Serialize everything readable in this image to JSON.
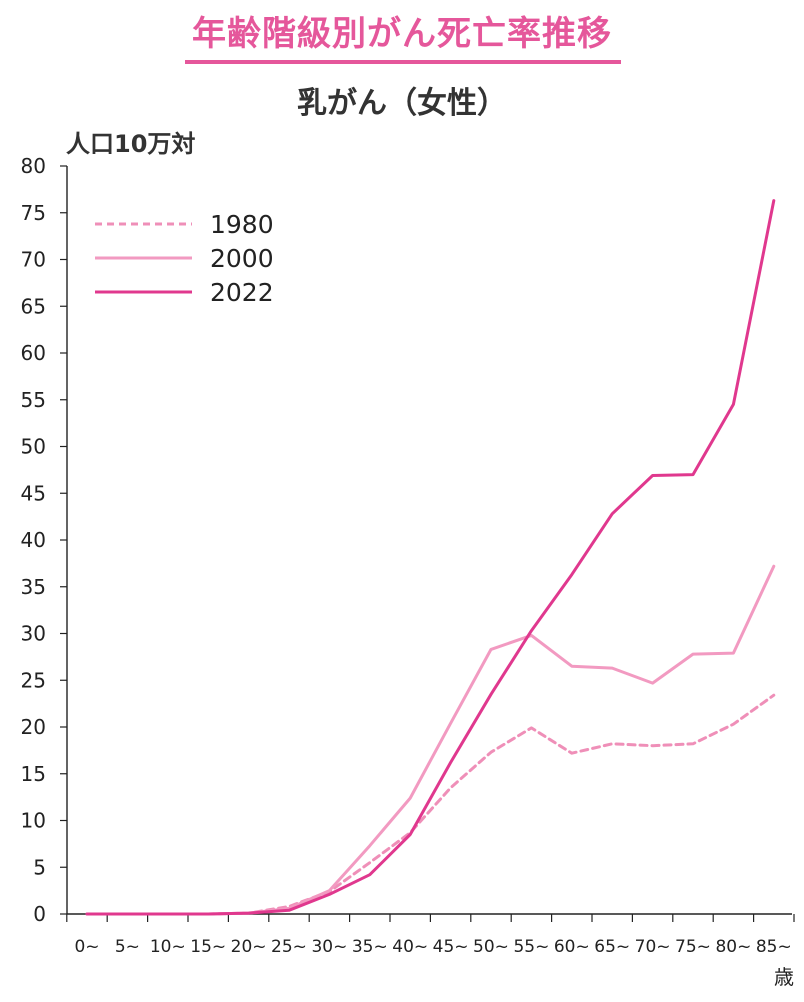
{
  "title": "年齢階級別がん死亡率推移",
  "subtitle": "乳がん（女性）",
  "colors": {
    "title": "#e5579b",
    "s1980": "#ef8fb8",
    "s2000": "#f29ac1",
    "s2022": "#e0388e"
  },
  "chart_data": {
    "type": "line",
    "title": "年齢階級別がん死亡率推移",
    "subtitle": "乳がん（女性）",
    "ylabel": "人口10万対",
    "xlabel": "歳",
    "ylim": [
      0,
      80
    ],
    "yticks": [
      0,
      5,
      10,
      15,
      20,
      25,
      30,
      35,
      40,
      45,
      50,
      55,
      60,
      65,
      70,
      75,
      80
    ],
    "grid": false,
    "legend": "top-left",
    "categories": [
      "0~",
      "5~",
      "10~",
      "15~",
      "20~",
      "25~",
      "30~",
      "35~",
      "40~",
      "45~",
      "50~",
      "55~",
      "60~",
      "65~",
      "70~",
      "75~",
      "80~",
      "85~"
    ],
    "series": [
      {
        "name": "1980",
        "style": "dashed",
        "color": "#ef8fb8",
        "values": [
          0,
          0,
          0,
          0,
          0.1,
          0.8,
          2.4,
          5.5,
          8.7,
          13.5,
          17.3,
          19.9,
          17.2,
          18.2,
          18.0,
          18.2,
          20.3,
          23.4
        ]
      },
      {
        "name": "2000",
        "style": "solid",
        "color": "#f29ac1",
        "values": [
          0,
          0,
          0,
          0,
          0.1,
          0.6,
          2.5,
          7.3,
          12.4,
          20.4,
          28.3,
          29.8,
          26.5,
          26.3,
          24.7,
          27.8,
          27.9,
          37.2
        ]
      },
      {
        "name": "2022",
        "style": "solid",
        "color": "#e0388e",
        "values": [
          0,
          0,
          0,
          0,
          0.1,
          0.4,
          2.1,
          4.2,
          8.5,
          16.2,
          23.5,
          30.3,
          36.3,
          42.8,
          46.9,
          47.0,
          54.5,
          76.3
        ]
      }
    ]
  }
}
